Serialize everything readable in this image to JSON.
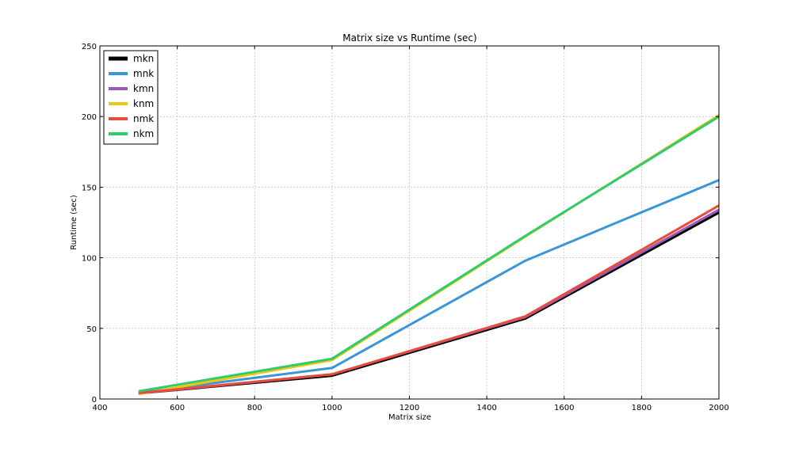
{
  "chart_data": {
    "type": "line",
    "title": "Matrix size vs Runtime (sec)",
    "xlabel": "Matrix size",
    "ylabel": "Runtime (sec)",
    "xlim": [
      400,
      2000
    ],
    "ylim": [
      0,
      250
    ],
    "xticks": [
      400,
      600,
      800,
      1000,
      1200,
      1400,
      1600,
      1800,
      2000
    ],
    "yticks": [
      0,
      50,
      100,
      150,
      200,
      250
    ],
    "grid": true,
    "legend_position": "top-left",
    "x": [
      500,
      1000,
      1500,
      2000
    ],
    "series": [
      {
        "name": "mkn",
        "color": "#000000",
        "values": [
          4,
          16.5,
          57,
          132
        ]
      },
      {
        "name": "mnk",
        "color": "#3a96d6",
        "values": [
          4.5,
          22,
          98,
          155
        ]
      },
      {
        "name": "kmn",
        "color": "#9b59b6",
        "values": [
          4,
          17.5,
          58,
          134
        ]
      },
      {
        "name": "knm",
        "color": "#f1c40f",
        "values": [
          3.5,
          27.5,
          115,
          201
        ]
      },
      {
        "name": "nmk",
        "color": "#e74c3c",
        "values": [
          4.2,
          17.5,
          58.5,
          137
        ]
      },
      {
        "name": "nkm",
        "color": "#2ecc71",
        "values": [
          5.5,
          28.5,
          115.5,
          200
        ]
      }
    ]
  }
}
